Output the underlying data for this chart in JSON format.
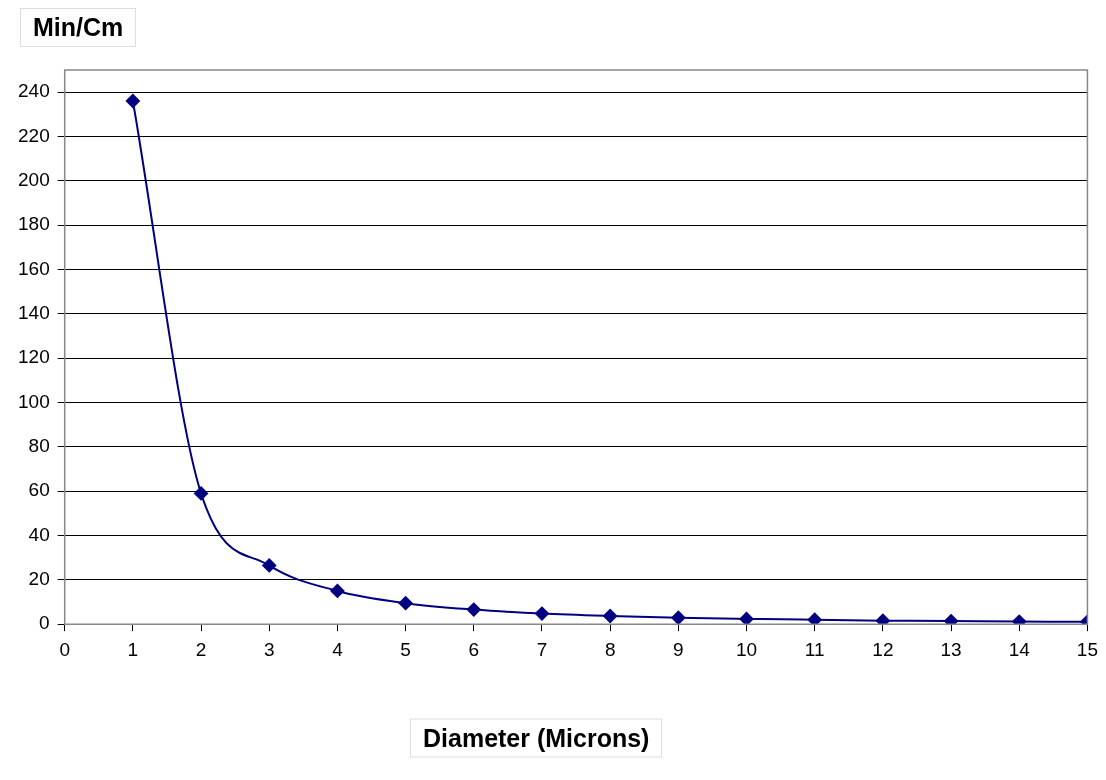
{
  "chart_data": {
    "type": "line",
    "ylabel": "Min/Cm",
    "xlabel": "Diameter (Microns)",
    "x": [
      1,
      2,
      3,
      4,
      5,
      6,
      7,
      8,
      9,
      10,
      11,
      12,
      13,
      14,
      15
    ],
    "series": [
      {
        "color": "#000080",
        "values": [
          236,
          59,
          26.5,
          15,
          9.5,
          6.6,
          4.8,
          3.7,
          2.9,
          2.4,
          2,
          1.6,
          1.4,
          1.2,
          1.1
        ]
      }
    ],
    "xlim": [
      0,
      15
    ],
    "xticks": [
      0,
      1,
      2,
      3,
      4,
      5,
      6,
      7,
      8,
      9,
      10,
      11,
      12,
      13,
      14,
      15
    ],
    "ylim": [
      0,
      250
    ],
    "yticks": [
      0,
      20,
      40,
      60,
      80,
      100,
      120,
      140,
      160,
      180,
      200,
      220,
      240
    ],
    "grid": "y",
    "legend": false,
    "marker": "diamond",
    "line_style": "solid"
  }
}
